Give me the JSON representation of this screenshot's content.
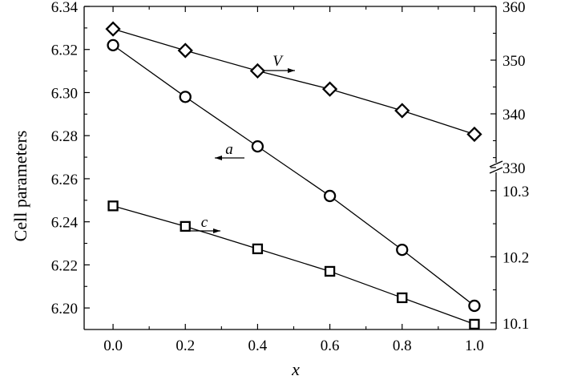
{
  "chart_data": {
    "type": "scatter",
    "xlabel": "x",
    "ylabel": "Cell parameters",
    "x": [
      0.0,
      0.2,
      0.4,
      0.6,
      0.8,
      1.0
    ],
    "x_ticks": [
      "0.0",
      "0.2",
      "0.4",
      "0.6",
      "0.8",
      "1.0"
    ],
    "xlim": [
      -0.08,
      1.06
    ],
    "left_axis": {
      "ylim": [
        6.19,
        6.34
      ],
      "ticks": [
        "6.20",
        "6.22",
        "6.24",
        "6.26",
        "6.28",
        "6.30",
        "6.32",
        "6.34"
      ]
    },
    "right_axis": {
      "broken": true,
      "upper": {
        "ylim": [
          330,
          360
        ],
        "ticks": [
          "330",
          "340",
          "350",
          "360"
        ]
      },
      "lower": {
        "ylim": [
          10.09,
          10.335
        ],
        "ticks": [
          "10.1",
          "10.2",
          "10.3"
        ]
      }
    },
    "series": [
      {
        "name": "V",
        "marker": "diamond",
        "axis": "right-upper",
        "arrow": "right",
        "values": [
          355.8,
          351.8,
          348.0,
          344.6,
          340.6,
          336.2
        ]
      },
      {
        "name": "a",
        "marker": "circle",
        "axis": "left",
        "arrow": "left",
        "values": [
          6.322,
          6.298,
          6.275,
          6.252,
          6.227,
          6.201
        ]
      },
      {
        "name": "c",
        "marker": "square",
        "axis": "right-lower",
        "arrow": "right",
        "values": [
          10.277,
          10.246,
          10.212,
          10.178,
          10.138,
          10.098
        ]
      }
    ],
    "grid": false,
    "legend": "none"
  }
}
